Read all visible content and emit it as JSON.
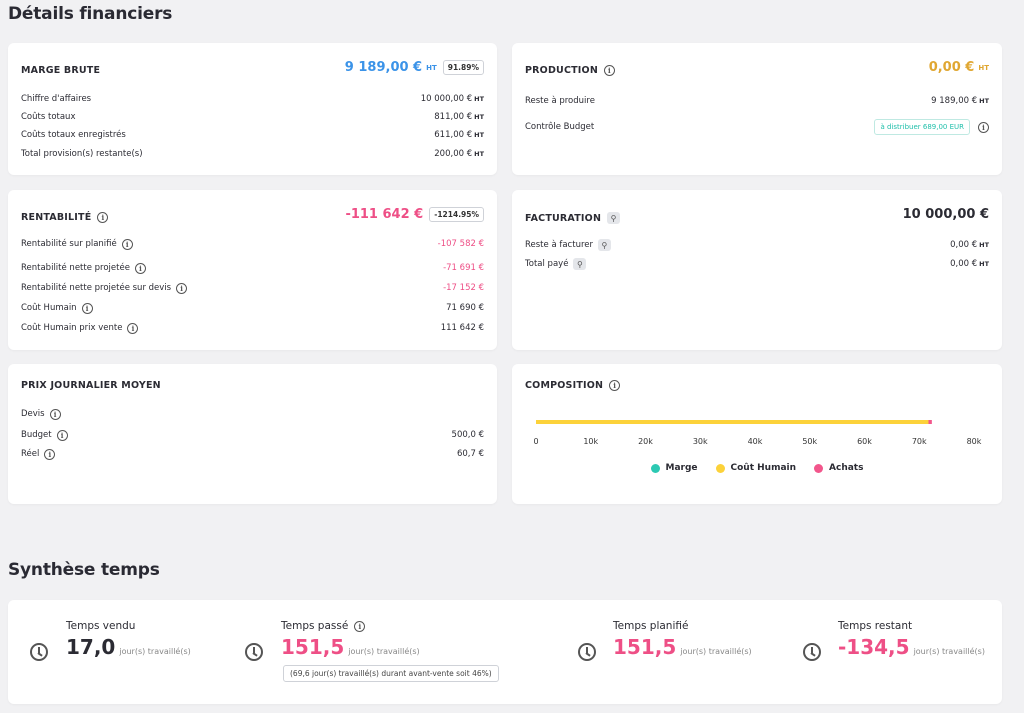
{
  "sections": {
    "financial_title": "Détails financiers",
    "time_title": "Synthèse temps"
  },
  "marge_brute": {
    "title": "MARGE BRUTE",
    "value": "9 189,00 €",
    "ht": "HT",
    "percent": "91.89%",
    "rows": [
      {
        "label": "Chiffre d'affaires",
        "value": "10 000,00 €",
        "ht": "HT"
      },
      {
        "label": "Coûts totaux",
        "value": "811,00 €",
        "ht": "HT"
      },
      {
        "label": "Coûts totaux enregistrés",
        "value": "611,00 €",
        "ht": "HT"
      },
      {
        "label": "Total provision(s) restante(s)",
        "value": "200,00 €",
        "ht": "HT"
      }
    ]
  },
  "production": {
    "title": "PRODUCTION",
    "value": "0,00 €",
    "ht": "HT",
    "rows": [
      {
        "label": "Reste à produire",
        "value": "9 189,00 €",
        "ht": "HT"
      },
      {
        "label": "Contrôle Budget",
        "badge": "à distribuer 689,00 EUR"
      }
    ]
  },
  "rentabilite": {
    "title": "RENTABILITÉ",
    "value": "-111 642 €",
    "percent": "-1214.95%",
    "rows": [
      {
        "label": "Rentabilité sur planifié",
        "value": "-107 582 €"
      },
      {
        "label": "Rentabilité nette projetée",
        "value": "-71 691 €"
      },
      {
        "label": "Rentabilité nette projetée sur devis",
        "value": "-17 152 €"
      },
      {
        "label": "Coût Humain",
        "value": "71 690 €"
      },
      {
        "label": "Coût Humain prix vente",
        "value": "111 642 €"
      }
    ]
  },
  "facturation": {
    "title": "FACTURATION",
    "value": "10 000,00 €",
    "rows": [
      {
        "label": "Reste à facturer",
        "value": "0,00 €",
        "ht": "HT"
      },
      {
        "label": "Total payé",
        "value": "0,00 €",
        "ht": "HT"
      }
    ]
  },
  "prix_journalier": {
    "title": "PRIX JOURNALIER MOYEN",
    "rows": [
      {
        "label": "Devis",
        "value": ""
      },
      {
        "label": "Budget",
        "value": "500,0 €"
      },
      {
        "label": "Réel",
        "value": "60,7 €"
      }
    ]
  },
  "composition": {
    "title": "COMPOSITION",
    "legend": [
      {
        "name": "Marge",
        "color": "#2cc9b3"
      },
      {
        "name": "Coût Humain",
        "color": "#fcd23a"
      },
      {
        "name": "Achats",
        "color": "#f2568c"
      }
    ]
  },
  "chart_data": {
    "type": "bar",
    "orientation": "horizontal",
    "stacked": true,
    "categories": [
      ""
    ],
    "series": [
      {
        "name": "Marge",
        "values": [
          0
        ]
      },
      {
        "name": "Coût Humain",
        "values": [
          71690
        ]
      },
      {
        "name": "Achats",
        "values": [
          611
        ]
      }
    ],
    "xlim": [
      0,
      80000
    ],
    "xticks": [
      "0",
      "10k",
      "20k",
      "30k",
      "40k",
      "50k",
      "60k",
      "70k",
      "80k"
    ],
    "legend": "bottom"
  },
  "temps": {
    "vendu": {
      "label": "Temps vendu",
      "value": "17,0",
      "unit": "jour(s) travaillé(s)"
    },
    "passe": {
      "label": "Temps passé",
      "value": "151,5",
      "unit": "jour(s) travaillé(s)",
      "note": "(69,6 jour(s) travaillé(s) durant avant-vente soit 46%)"
    },
    "planifie": {
      "label": "Temps planifié",
      "value": "151,5",
      "unit": "jour(s) travaillé(s)"
    },
    "restant": {
      "label": "Temps restant",
      "value": "-134,5",
      "unit": "jour(s) travaillé(s)"
    }
  },
  "colors": {
    "blue": "#3b93e8",
    "pink": "#ee4f86",
    "gold": "#e0a732",
    "teal": "#1fbfaa"
  }
}
